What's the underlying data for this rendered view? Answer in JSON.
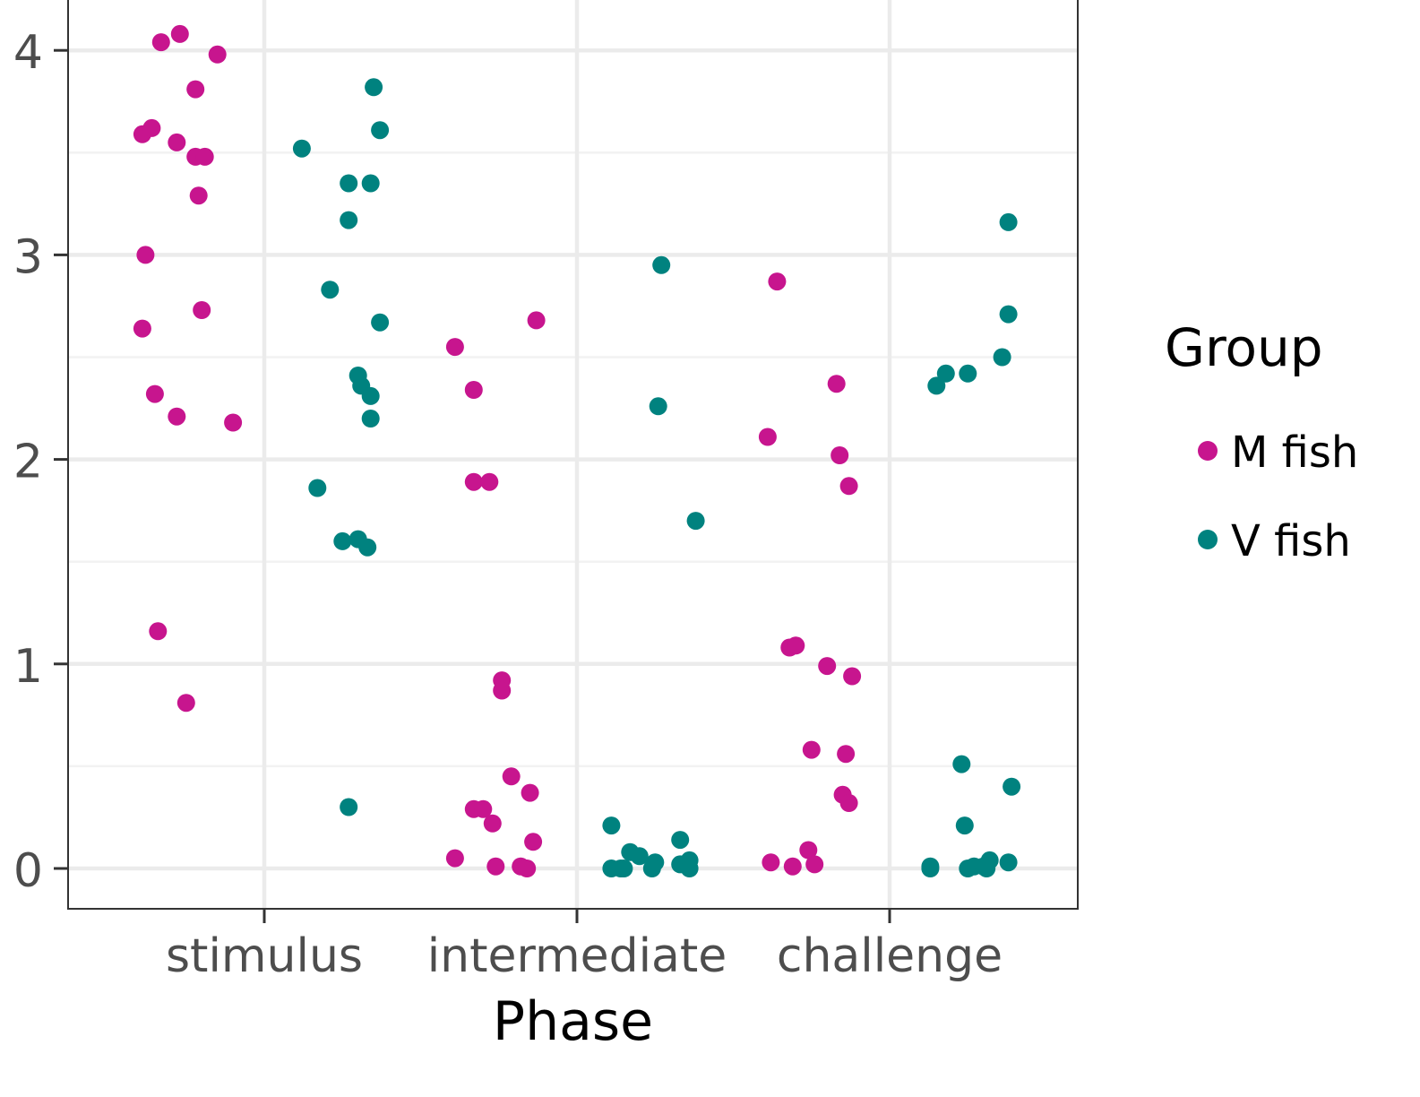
{
  "chart_data": {
    "type": "scatter",
    "jitter": true,
    "xlabel": "Phase",
    "ylabel": "",
    "categories": [
      "stimulus",
      "intermediate",
      "challenge"
    ],
    "yticks": [
      0,
      1,
      2,
      3,
      4
    ],
    "ylim": [
      -0.2,
      4.25
    ],
    "grid": true,
    "legend": {
      "title": "Group",
      "position": "right"
    },
    "series": [
      {
        "name": "M fish",
        "color": "#C7158E",
        "points": [
          {
            "x": "stimulus",
            "offset": -0.33,
            "y": 4.04
          },
          {
            "x": "stimulus",
            "offset": -0.27,
            "y": 4.08
          },
          {
            "x": "stimulus",
            "offset": -0.15,
            "y": 3.98
          },
          {
            "x": "stimulus",
            "offset": -0.22,
            "y": 3.81
          },
          {
            "x": "stimulus",
            "offset": -0.39,
            "y": 3.59
          },
          {
            "x": "stimulus",
            "offset": -0.36,
            "y": 3.62
          },
          {
            "x": "stimulus",
            "offset": -0.28,
            "y": 3.55
          },
          {
            "x": "stimulus",
            "offset": -0.22,
            "y": 3.48
          },
          {
            "x": "stimulus",
            "offset": -0.19,
            "y": 3.48
          },
          {
            "x": "stimulus",
            "offset": -0.21,
            "y": 3.29
          },
          {
            "x": "stimulus",
            "offset": -0.38,
            "y": 3.0
          },
          {
            "x": "stimulus",
            "offset": -0.2,
            "y": 2.73
          },
          {
            "x": "stimulus",
            "offset": -0.39,
            "y": 2.64
          },
          {
            "x": "stimulus",
            "offset": -0.35,
            "y": 2.32
          },
          {
            "x": "stimulus",
            "offset": -0.28,
            "y": 2.21
          },
          {
            "x": "stimulus",
            "offset": -0.1,
            "y": 2.18
          },
          {
            "x": "stimulus",
            "offset": -0.34,
            "y": 1.16
          },
          {
            "x": "stimulus",
            "offset": -0.25,
            "y": 0.81
          },
          {
            "x": "intermediate",
            "offset": -0.39,
            "y": 2.55
          },
          {
            "x": "intermediate",
            "offset": -0.13,
            "y": 2.68
          },
          {
            "x": "intermediate",
            "offset": -0.33,
            "y": 2.34
          },
          {
            "x": "intermediate",
            "offset": -0.33,
            "y": 1.89
          },
          {
            "x": "intermediate",
            "offset": -0.28,
            "y": 1.89
          },
          {
            "x": "intermediate",
            "offset": -0.24,
            "y": 0.92
          },
          {
            "x": "intermediate",
            "offset": -0.24,
            "y": 0.87
          },
          {
            "x": "intermediate",
            "offset": -0.21,
            "y": 0.45
          },
          {
            "x": "intermediate",
            "offset": -0.15,
            "y": 0.37
          },
          {
            "x": "intermediate",
            "offset": -0.33,
            "y": 0.29
          },
          {
            "x": "intermediate",
            "offset": -0.3,
            "y": 0.29
          },
          {
            "x": "intermediate",
            "offset": -0.27,
            "y": 0.22
          },
          {
            "x": "intermediate",
            "offset": -0.14,
            "y": 0.13
          },
          {
            "x": "intermediate",
            "offset": -0.39,
            "y": 0.05
          },
          {
            "x": "intermediate",
            "offset": -0.26,
            "y": 0.01
          },
          {
            "x": "intermediate",
            "offset": -0.18,
            "y": 0.01
          },
          {
            "x": "intermediate",
            "offset": -0.16,
            "y": 0.0
          },
          {
            "x": "challenge",
            "offset": -0.36,
            "y": 2.87
          },
          {
            "x": "challenge",
            "offset": -0.17,
            "y": 2.37
          },
          {
            "x": "challenge",
            "offset": -0.39,
            "y": 2.11
          },
          {
            "x": "challenge",
            "offset": -0.16,
            "y": 2.02
          },
          {
            "x": "challenge",
            "offset": -0.13,
            "y": 1.87
          },
          {
            "x": "challenge",
            "offset": -0.32,
            "y": 1.08
          },
          {
            "x": "challenge",
            "offset": -0.3,
            "y": 1.09
          },
          {
            "x": "challenge",
            "offset": -0.2,
            "y": 0.99
          },
          {
            "x": "challenge",
            "offset": -0.12,
            "y": 0.94
          },
          {
            "x": "challenge",
            "offset": -0.25,
            "y": 0.58
          },
          {
            "x": "challenge",
            "offset": -0.14,
            "y": 0.56
          },
          {
            "x": "challenge",
            "offset": -0.15,
            "y": 0.36
          },
          {
            "x": "challenge",
            "offset": -0.13,
            "y": 0.32
          },
          {
            "x": "challenge",
            "offset": -0.26,
            "y": 0.09
          },
          {
            "x": "challenge",
            "offset": -0.38,
            "y": 0.03
          },
          {
            "x": "challenge",
            "offset": -0.31,
            "y": 0.01
          },
          {
            "x": "challenge",
            "offset": -0.24,
            "y": 0.02
          }
        ]
      },
      {
        "name": "V fish",
        "color": "#00827F",
        "points": [
          {
            "x": "stimulus",
            "offset": 0.35,
            "y": 3.82
          },
          {
            "x": "stimulus",
            "offset": 0.37,
            "y": 3.61
          },
          {
            "x": "stimulus",
            "offset": 0.12,
            "y": 3.52
          },
          {
            "x": "stimulus",
            "offset": 0.27,
            "y": 3.35
          },
          {
            "x": "stimulus",
            "offset": 0.34,
            "y": 3.35
          },
          {
            "x": "stimulus",
            "offset": 0.27,
            "y": 3.17
          },
          {
            "x": "stimulus",
            "offset": 0.21,
            "y": 2.83
          },
          {
            "x": "stimulus",
            "offset": 0.37,
            "y": 2.67
          },
          {
            "x": "stimulus",
            "offset": 0.3,
            "y": 2.41
          },
          {
            "x": "stimulus",
            "offset": 0.31,
            "y": 2.36
          },
          {
            "x": "stimulus",
            "offset": 0.34,
            "y": 2.31
          },
          {
            "x": "stimulus",
            "offset": 0.34,
            "y": 2.2
          },
          {
            "x": "stimulus",
            "offset": 0.17,
            "y": 1.86
          },
          {
            "x": "stimulus",
            "offset": 0.25,
            "y": 1.6
          },
          {
            "x": "stimulus",
            "offset": 0.3,
            "y": 1.61
          },
          {
            "x": "stimulus",
            "offset": 0.33,
            "y": 1.57
          },
          {
            "x": "stimulus",
            "offset": 0.27,
            "y": 0.3
          },
          {
            "x": "intermediate",
            "offset": 0.27,
            "y": 2.95
          },
          {
            "x": "intermediate",
            "offset": 0.26,
            "y": 2.26
          },
          {
            "x": "intermediate",
            "offset": 0.38,
            "y": 1.7
          },
          {
            "x": "intermediate",
            "offset": 0.11,
            "y": 0.21
          },
          {
            "x": "intermediate",
            "offset": 0.33,
            "y": 0.14
          },
          {
            "x": "intermediate",
            "offset": 0.17,
            "y": 0.08
          },
          {
            "x": "intermediate",
            "offset": 0.2,
            "y": 0.06
          },
          {
            "x": "intermediate",
            "offset": 0.25,
            "y": 0.03
          },
          {
            "x": "intermediate",
            "offset": 0.36,
            "y": 0.04
          },
          {
            "x": "intermediate",
            "offset": 0.33,
            "y": 0.02
          },
          {
            "x": "intermediate",
            "offset": 0.11,
            "y": 0.0
          },
          {
            "x": "intermediate",
            "offset": 0.14,
            "y": 0.0
          },
          {
            "x": "intermediate",
            "offset": 0.15,
            "y": 0.0
          },
          {
            "x": "intermediate",
            "offset": 0.24,
            "y": 0.0
          },
          {
            "x": "intermediate",
            "offset": 0.36,
            "y": 0.0
          },
          {
            "x": "challenge",
            "offset": 0.38,
            "y": 3.16
          },
          {
            "x": "challenge",
            "offset": 0.38,
            "y": 2.71
          },
          {
            "x": "challenge",
            "offset": 0.36,
            "y": 2.5
          },
          {
            "x": "challenge",
            "offset": 0.18,
            "y": 2.42
          },
          {
            "x": "challenge",
            "offset": 0.25,
            "y": 2.42
          },
          {
            "x": "challenge",
            "offset": 0.15,
            "y": 2.36
          },
          {
            "x": "challenge",
            "offset": 0.23,
            "y": 0.51
          },
          {
            "x": "challenge",
            "offset": 0.39,
            "y": 0.4
          },
          {
            "x": "challenge",
            "offset": 0.24,
            "y": 0.21
          },
          {
            "x": "challenge",
            "offset": 0.32,
            "y": 0.04
          },
          {
            "x": "challenge",
            "offset": 0.38,
            "y": 0.03
          },
          {
            "x": "challenge",
            "offset": 0.13,
            "y": 0.01
          },
          {
            "x": "challenge",
            "offset": 0.25,
            "y": 0.0
          },
          {
            "x": "challenge",
            "offset": 0.27,
            "y": 0.01
          },
          {
            "x": "challenge",
            "offset": 0.3,
            "y": 0.01
          },
          {
            "x": "challenge",
            "offset": 0.31,
            "y": 0.0
          },
          {
            "x": "challenge",
            "offset": 0.13,
            "y": 0.0
          }
        ]
      }
    ]
  }
}
